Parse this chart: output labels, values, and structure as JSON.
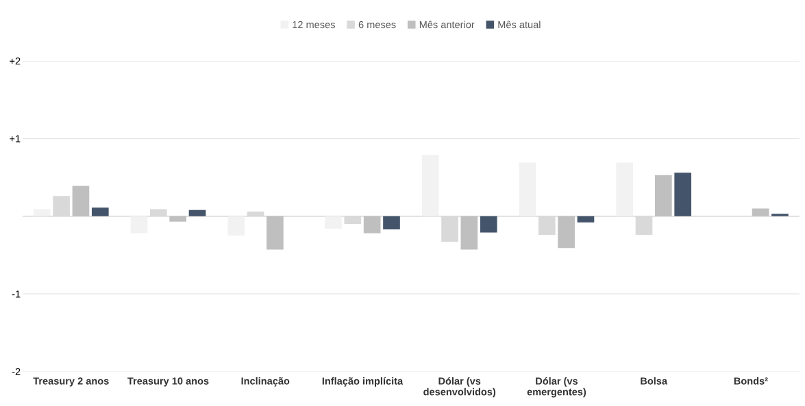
{
  "chart_data": {
    "type": "bar",
    "categories": [
      "Treasury 2 anos",
      "Treasury 10 anos",
      "Inclinação",
      "Inflação implícita",
      "Dólar (vs\ndesenvolvidos)",
      "Dólar (vs\nemergentes)",
      "Bolsa",
      "Bonds²"
    ],
    "series": [
      {
        "name": "12 meses",
        "color": "#f2f2f2",
        "values": [
          0.09,
          -0.22,
          -0.25,
          -0.16,
          0.79,
          0.69,
          0.69,
          null
        ]
      },
      {
        "name": "6 meses",
        "color": "#d9d9d9",
        "values": [
          0.26,
          0.09,
          0.06,
          -0.1,
          -0.33,
          -0.24,
          -0.24,
          null
        ]
      },
      {
        "name": "Mês anterior",
        "color": "#bfbfbf",
        "values": [
          0.39,
          -0.07,
          -0.43,
          -0.22,
          -0.43,
          -0.41,
          0.53,
          0.1
        ]
      },
      {
        "name": "Mês atual",
        "color": "#44546a",
        "values": [
          0.11,
          0.08,
          null,
          -0.17,
          -0.21,
          -0.08,
          0.56,
          0.03
        ]
      }
    ],
    "ylim": [
      -2,
      2
    ],
    "yticks": [
      {
        "value": -2,
        "label": "-2"
      },
      {
        "value": -1,
        "label": "-1"
      },
      {
        "value": 0,
        "label": null
      },
      {
        "value": 1,
        "label": "+1"
      },
      {
        "value": 2,
        "label": "+2"
      }
    ],
    "grid": "y",
    "legend": "top"
  }
}
